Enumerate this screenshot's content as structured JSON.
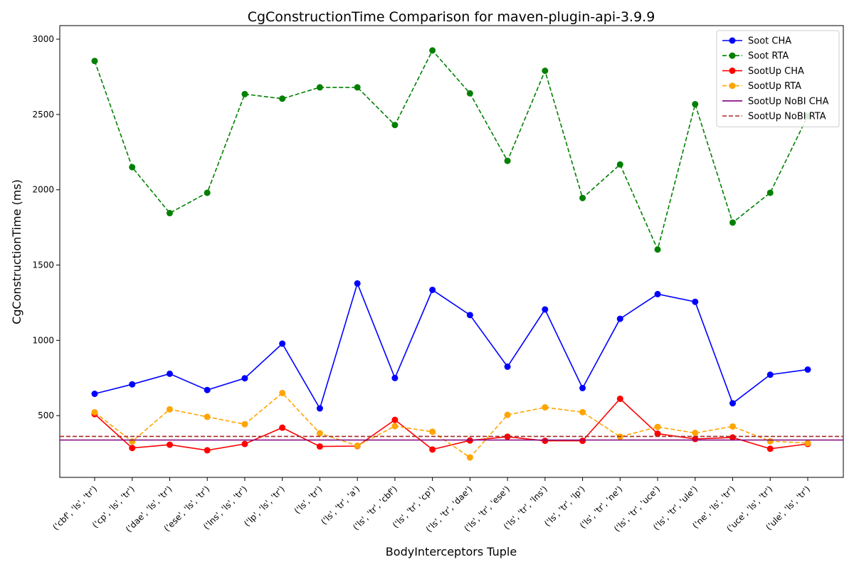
{
  "chart_data": {
    "type": "line",
    "title": "CgConstructionTime Comparison for maven-plugin-api-3.9.9",
    "xlabel": "BodyInterceptors Tuple",
    "ylabel": "CgConstructionTime (ms)",
    "ylim": [
      90,
      3090
    ],
    "yticks": [
      500,
      1000,
      1500,
      2000,
      2500,
      3000
    ],
    "grid": false,
    "legend_position": "top-right",
    "categories": [
      "('cbf', 'ls', 'tr')",
      "('cp', 'ls', 'tr')",
      "('dae', 'ls', 'tr')",
      "('ese', 'ls', 'tr')",
      "('lns', 'ls', 'tr')",
      "('lp', 'ls', 'tr')",
      "('ls', 'tr')",
      "('ls', 'tr', 'a')",
      "('ls', 'tr', 'cbf')",
      "('ls', 'tr', 'cp')",
      "('ls', 'tr', 'dae')",
      "('ls', 'tr', 'ese')",
      "('ls', 'tr', 'lns')",
      "('ls', 'tr', 'lp')",
      "('ls', 'tr', 'ne')",
      "('ls', 'tr', 'uce')",
      "('ls', 'tr', 'ule')",
      "('ne', 'ls', 'tr')",
      "('uce', 'ls', 'tr')",
      "('ule', 'ls', 'tr')"
    ],
    "series": [
      {
        "name": "Soot CHA",
        "color": "#0000ff",
        "dash": "solid",
        "marker": true,
        "values": [
          645,
          708,
          778,
          670,
          748,
          978,
          548,
          1378,
          750,
          1335,
          1168,
          825,
          1205,
          683,
          1143,
          1307,
          1256,
          582,
          772,
          806
        ]
      },
      {
        "name": "Soot RTA",
        "color": "#008000",
        "dash": "dashed",
        "marker": true,
        "values": [
          2855,
          2150,
          1845,
          1980,
          2635,
          2605,
          2680,
          2680,
          2430,
          2925,
          2640,
          2192,
          2790,
          1945,
          2168,
          1603,
          2568,
          1782,
          1980,
          2490
        ]
      },
      {
        "name": "SootUp CHA",
        "color": "#ff0000",
        "dash": "solid",
        "marker": true,
        "values": [
          510,
          285,
          307,
          270,
          312,
          420,
          295,
          298,
          472,
          275,
          335,
          360,
          333,
          333,
          612,
          380,
          345,
          355,
          280,
          312
        ]
      },
      {
        "name": "SootUp RTA",
        "color": "#ffa500",
        "dash": "dashed",
        "marker": true,
        "values": [
          522,
          328,
          542,
          492,
          443,
          650,
          383,
          300,
          430,
          393,
          222,
          505,
          555,
          523,
          360,
          425,
          385,
          428,
          330,
          318
        ]
      },
      {
        "name": "SootUp NoBI CHA",
        "color": "#800080",
        "dash": "solid",
        "marker": false,
        "constant": 338
      },
      {
        "name": "SootUp NoBI RTA",
        "color": "#a52a2a",
        "dash": "dashed",
        "marker": false,
        "constant": 362
      }
    ]
  }
}
